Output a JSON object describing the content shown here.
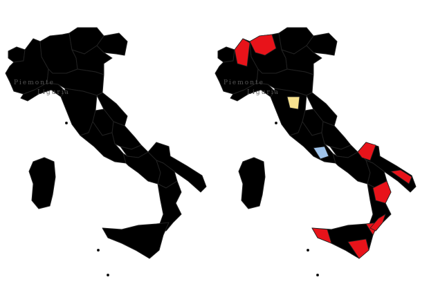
{
  "colors": {
    "yellow": "#f7e28f",
    "salmon": "#f1c3a6",
    "blue": "#9fc3ea",
    "white": "#ffffff",
    "brown": "#b5652f",
    "green": "#c9dd92",
    "red": "#e8131a"
  },
  "maps": [
    {
      "labels": {
        "piemonte": "Piemonte",
        "liguria": "Liguria"
      }
    },
    {
      "labels": {
        "piemonte": "Piemonte",
        "liguria": "Liguria"
      }
    }
  ]
}
